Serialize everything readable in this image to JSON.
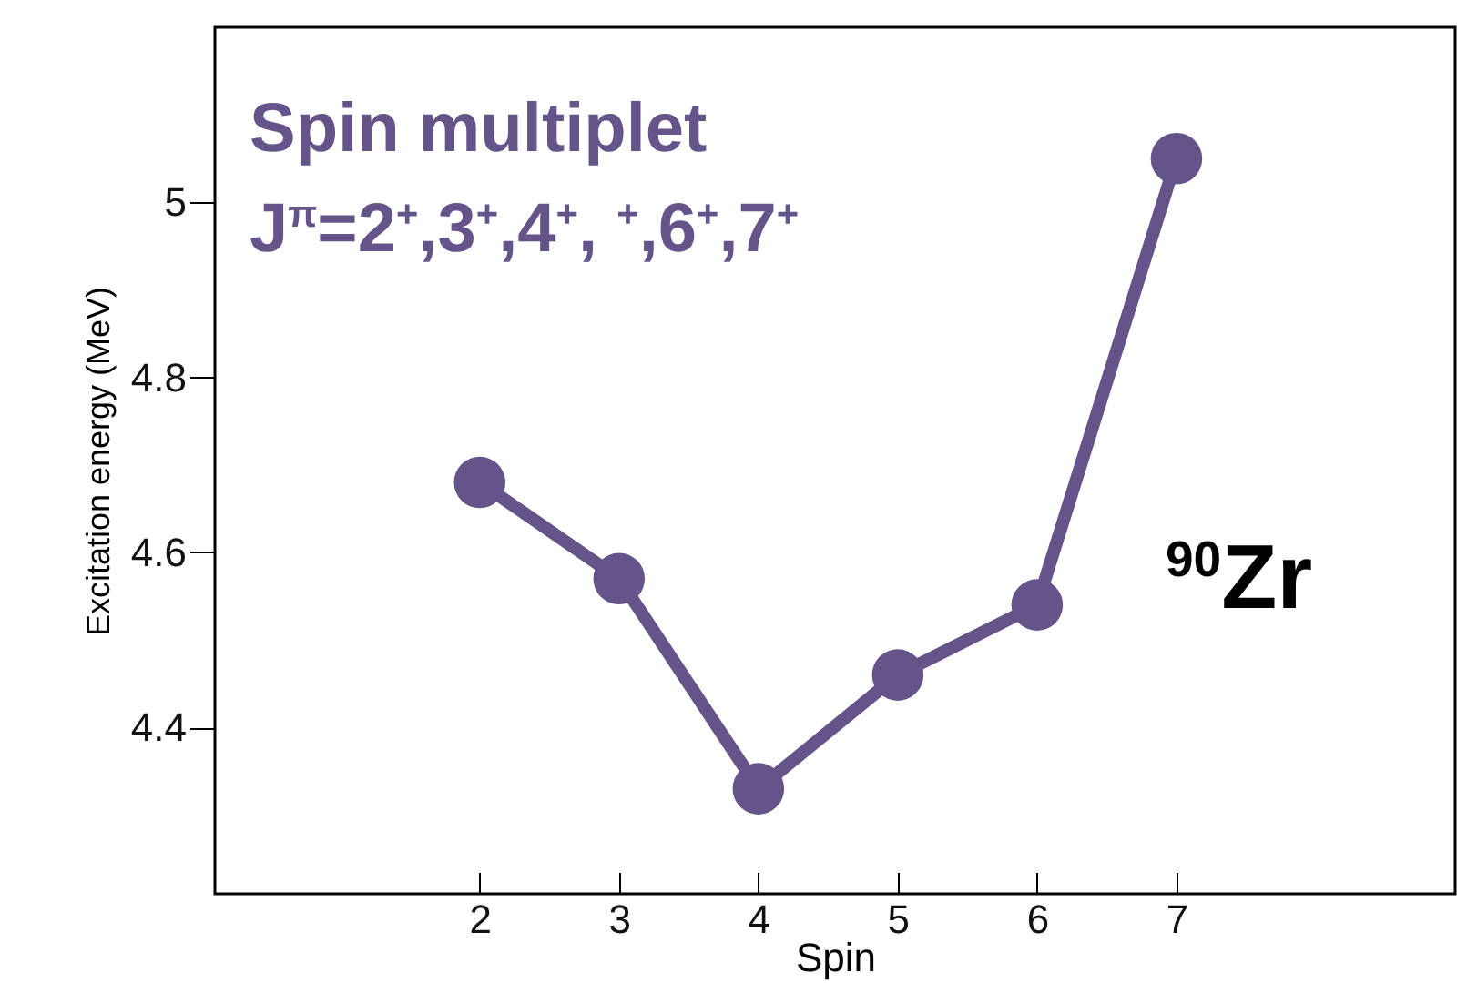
{
  "chart_data": {
    "type": "line",
    "xlabel": "Spin",
    "ylabel": "Excitation energy (MeV)",
    "x": [
      2,
      3,
      4,
      5,
      6,
      7
    ],
    "series": [
      {
        "color": "#65548a",
        "values": [
          4.68,
          4.57,
          4.33,
          4.46,
          4.54,
          5.05
        ]
      }
    ],
    "xlim": [
      0.1,
      9
    ],
    "ylim": [
      4.21,
      5.2
    ],
    "xticks": [
      2,
      3,
      4,
      5,
      6,
      7
    ],
    "yticks": [
      4.4,
      4.6,
      4.8,
      5
    ],
    "marker": "circle",
    "line_style": "solid",
    "annotations": [
      "Spin multiplet",
      "J$^{π}$=2$^{+}$,3$^{+}$,4$^{+}$, $^{+}$,6$^{+}$,7$^{+}$",
      "$^{90}$Zr"
    ]
  }
}
